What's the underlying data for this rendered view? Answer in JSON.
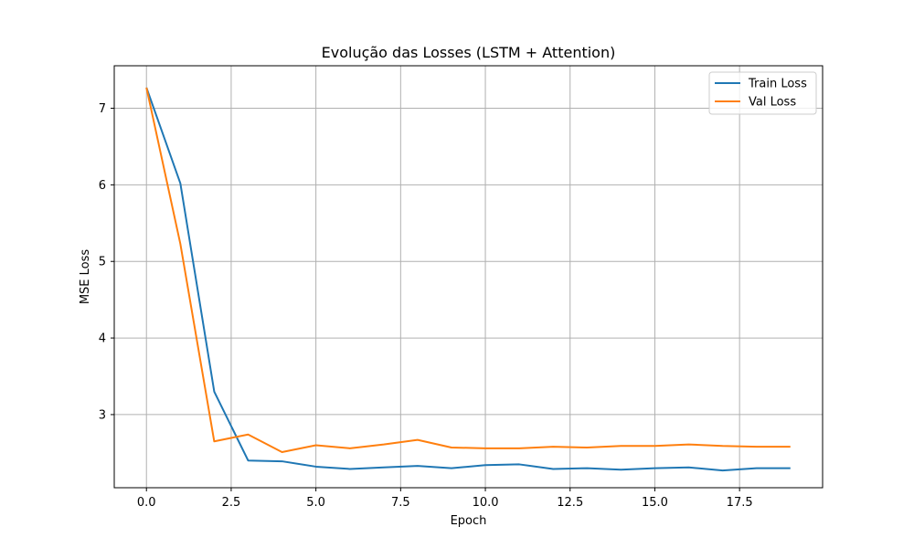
{
  "chart_data": {
    "type": "line",
    "title": "Evolução das Losses (LSTM + Attention)",
    "xlabel": "Epoch",
    "ylabel": "MSE Loss",
    "xlim": [
      -0.95,
      19.95
    ],
    "ylim": [
      2.045,
      7.555
    ],
    "xticks": [
      0,
      2.5,
      5,
      7.5,
      10,
      12.5,
      15,
      17.5
    ],
    "xtick_labels": [
      "0.0",
      "2.5",
      "5.0",
      "7.5",
      "10.0",
      "12.5",
      "15.0",
      "17.5"
    ],
    "yticks": [
      3,
      4,
      5,
      6,
      7
    ],
    "ytick_labels": [
      "3",
      "4",
      "5",
      "6",
      "7"
    ],
    "grid": true,
    "legend_position": "top-right",
    "x": [
      0,
      1,
      2,
      3,
      4,
      5,
      6,
      7,
      8,
      9,
      10,
      11,
      12,
      13,
      14,
      15,
      16,
      17,
      18,
      19
    ],
    "series": [
      {
        "name": "Train Loss",
        "color": "#1f77b4",
        "values": [
          7.27,
          6.02,
          3.3,
          2.4,
          2.39,
          2.32,
          2.29,
          2.31,
          2.33,
          2.3,
          2.34,
          2.35,
          2.29,
          2.3,
          2.28,
          2.3,
          2.31,
          2.27,
          2.3,
          2.3
        ]
      },
      {
        "name": "Val Loss",
        "color": "#ff7f0e",
        "values": [
          7.27,
          5.23,
          2.65,
          2.74,
          2.51,
          2.6,
          2.56,
          2.61,
          2.67,
          2.57,
          2.56,
          2.56,
          2.58,
          2.57,
          2.59,
          2.59,
          2.61,
          2.59,
          2.58,
          2.58
        ]
      }
    ]
  }
}
